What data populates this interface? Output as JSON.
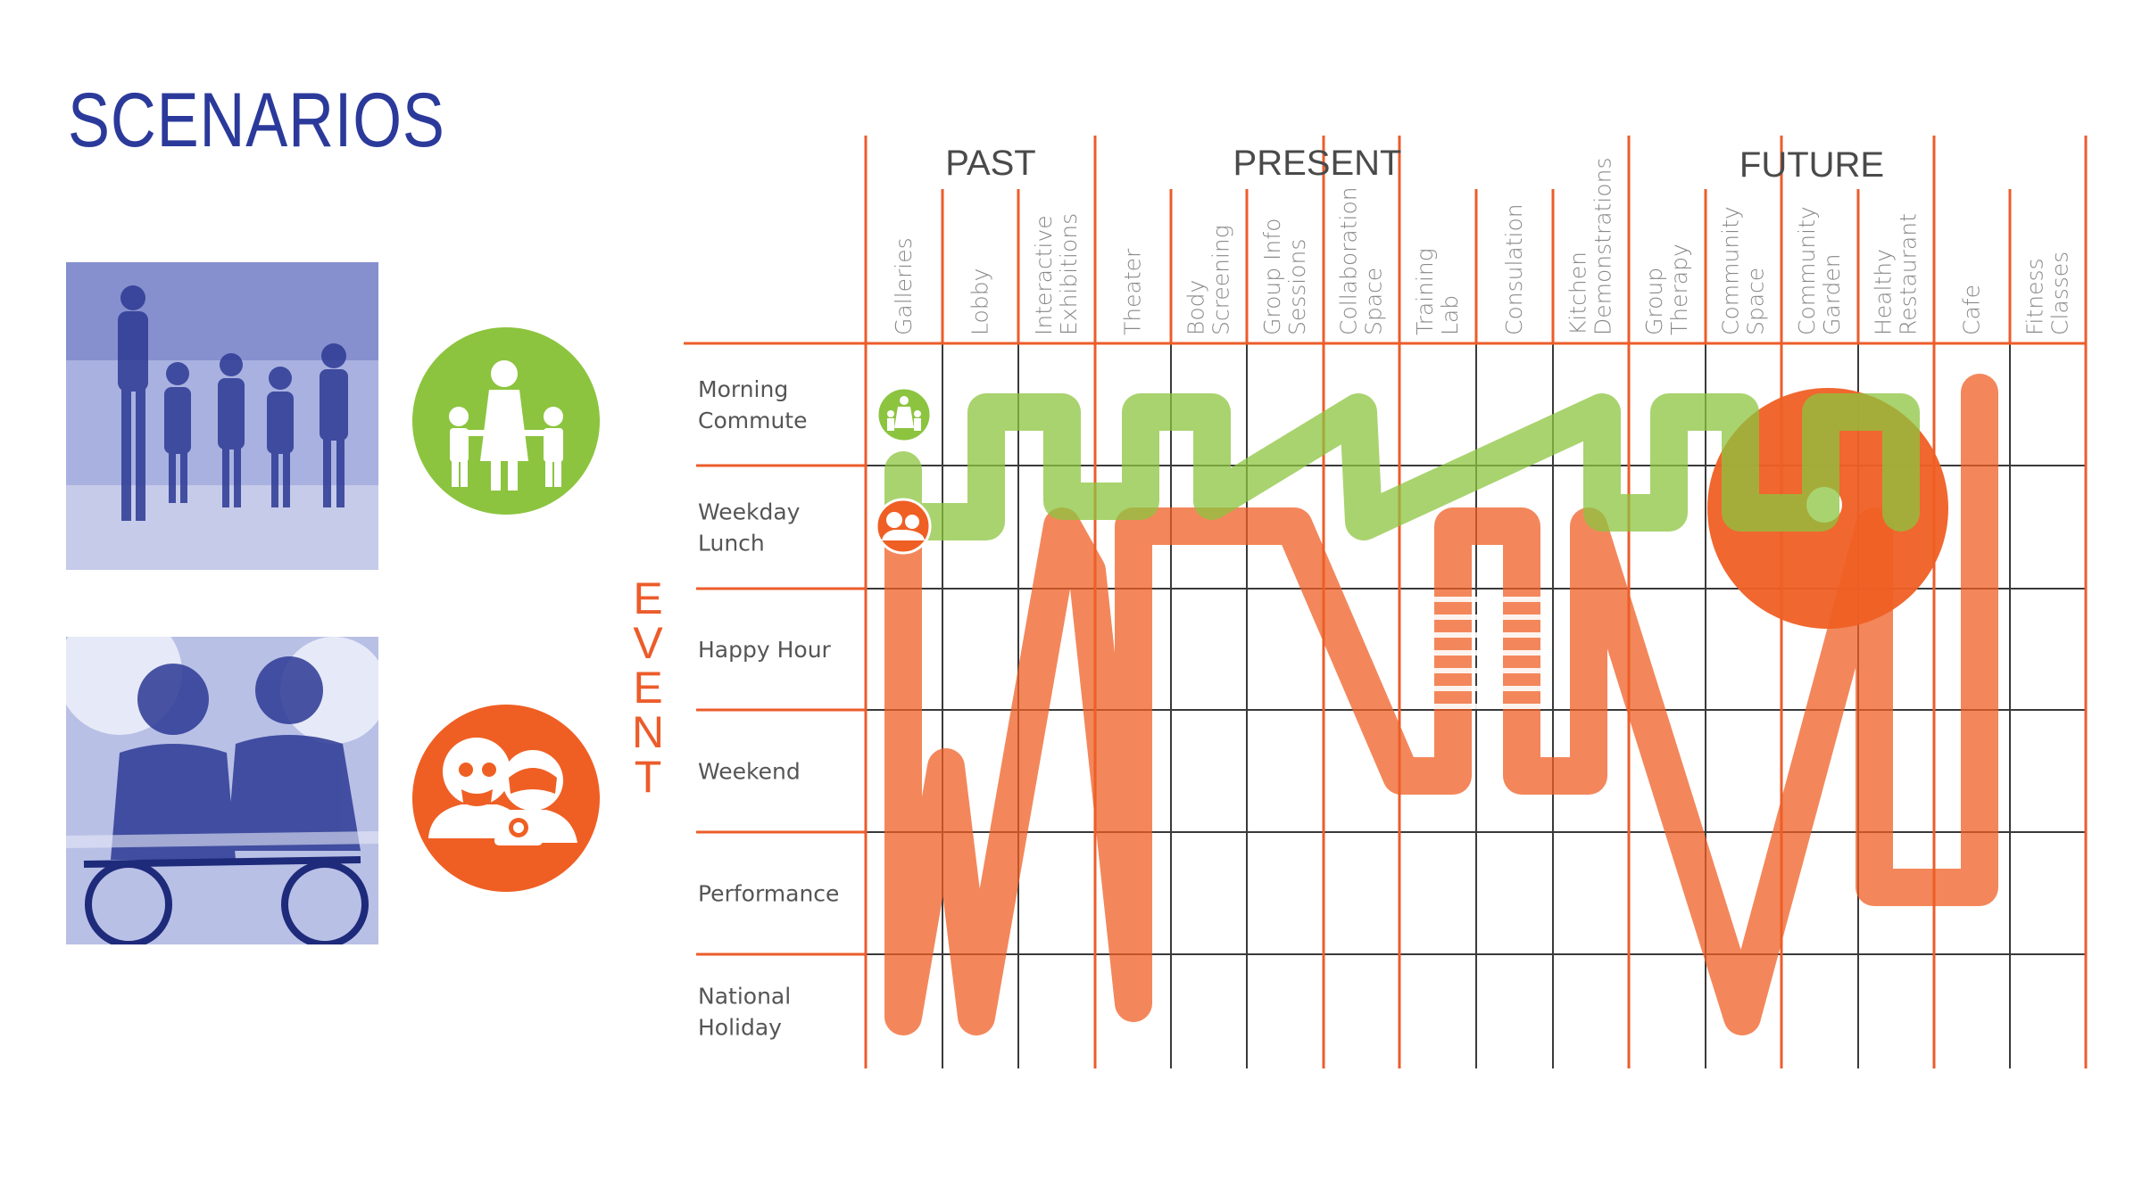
{
  "title": "SCENARIOS",
  "event_label": [
    "E",
    "V",
    "E",
    "N",
    "T"
  ],
  "eras": [
    "PAST",
    "PRESENT",
    "FUTURE"
  ],
  "columns": [
    [
      "Galleries"
    ],
    [
      "Lobby"
    ],
    [
      "Interactive",
      "Exhibitions"
    ],
    [
      "Theater"
    ],
    [
      "Body",
      "Screening"
    ],
    [
      "Group Info",
      "Sessions"
    ],
    [
      "Collaboration",
      "Space"
    ],
    [
      "Training",
      "Lab"
    ],
    [
      "Consulation"
    ],
    [
      "Kitchen",
      "Demonstrations"
    ],
    [
      "Group",
      "Therapy"
    ],
    [
      "Community",
      "Space"
    ],
    [
      "Community",
      "Garden"
    ],
    [
      "Healthy",
      "Restaurant"
    ],
    [
      "Cafe"
    ],
    [
      "Fitness",
      "Classes"
    ]
  ],
  "rows": [
    [
      "Morning",
      "Commute"
    ],
    [
      "Weekday",
      "Lunch"
    ],
    [
      "Happy Hour"
    ],
    [
      "Weekend"
    ],
    [
      "Performance"
    ],
    [
      "National",
      "Holiday"
    ]
  ],
  "personas": [
    {
      "name": "family",
      "color": "#8cc43f",
      "icon": "family-icon",
      "photo": "family-walking-photo"
    },
    {
      "name": "seniors",
      "color": "#ef5f24",
      "icon": "seniors-camera-icon",
      "photo": "seniors-biking-photo"
    }
  ],
  "colors": {
    "grid_orange": "#ec5c2b",
    "grid_gray": "#3a3a3a",
    "green_path": "#8cc43f",
    "orange_path": "#ef5f24",
    "title_blue": "#2b3a9a",
    "photo_duotone": "#3d4db0"
  }
}
